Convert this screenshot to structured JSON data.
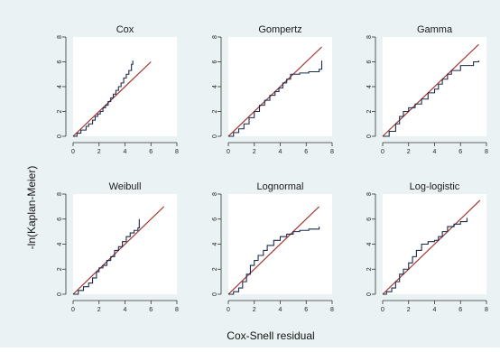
{
  "figure": {
    "ylabel": "-ln(Kaplan-Meier)",
    "xlabel": "Cox-Snell residual",
    "colors": {
      "outer_bg": "#eaf2f3",
      "panel_bg": "#ffffff",
      "step": "#1a2b4c",
      "reference": "#a3322a"
    }
  },
  "chart_data": [
    {
      "type": "line",
      "title": "Cox",
      "xlim": [
        0,
        8
      ],
      "ylim": [
        0,
        8
      ],
      "xticks": [
        0,
        2,
        4,
        6,
        8
      ],
      "yticks": [
        0,
        2,
        4,
        6,
        8
      ],
      "series": [
        {
          "values": [
            [
              0,
              0
            ],
            [
              0.3,
              0.25
            ],
            [
              0.6,
              0.5
            ],
            [
              1.0,
              0.8
            ],
            [
              1.2,
              1.0
            ],
            [
              1.5,
              1.3
            ],
            [
              1.7,
              1.6
            ],
            [
              1.9,
              1.8
            ],
            [
              2.1,
              2.0
            ],
            [
              2.3,
              2.3
            ],
            [
              2.5,
              2.5
            ],
            [
              2.7,
              2.8
            ],
            [
              2.9,
              3.1
            ],
            [
              3.1,
              3.4
            ],
            [
              3.3,
              3.7
            ],
            [
              3.5,
              4.0
            ],
            [
              3.7,
              4.3
            ],
            [
              3.9,
              4.7
            ],
            [
              4.1,
              5.0
            ],
            [
              4.3,
              5.3
            ],
            [
              4.5,
              5.8
            ],
            [
              4.6,
              6.1
            ]
          ]
        },
        {
          "values": [
            [
              0,
              0
            ],
            [
              6,
              6
            ]
          ]
        }
      ]
    },
    {
      "type": "line",
      "title": "Gompertz",
      "xlim": [
        0,
        8
      ],
      "ylim": [
        0,
        8
      ],
      "xticks": [
        0,
        2,
        4,
        6,
        8
      ],
      "yticks": [
        0,
        2,
        4,
        6,
        8
      ],
      "series": [
        {
          "values": [
            [
              0,
              0
            ],
            [
              0.4,
              0.3
            ],
            [
              0.8,
              0.6
            ],
            [
              1.2,
              1.0
            ],
            [
              1.6,
              1.5
            ],
            [
              2.0,
              2.0
            ],
            [
              2.4,
              2.5
            ],
            [
              2.8,
              2.9
            ],
            [
              3.2,
              3.3
            ],
            [
              3.6,
              3.6
            ],
            [
              3.9,
              3.9
            ],
            [
              4.2,
              4.3
            ],
            [
              4.5,
              4.6
            ],
            [
              4.8,
              5.0
            ],
            [
              5.5,
              5.1
            ],
            [
              6.2,
              5.2
            ],
            [
              7.0,
              5.4
            ],
            [
              7.2,
              5.5
            ],
            [
              7.2,
              6.1
            ]
          ]
        },
        {
          "values": [
            [
              0,
              0
            ],
            [
              7.2,
              7.2
            ]
          ]
        }
      ]
    },
    {
      "type": "line",
      "title": "Gamma",
      "xlim": [
        0,
        8
      ],
      "ylim": [
        0,
        8
      ],
      "xticks": [
        0,
        2,
        4,
        6,
        8
      ],
      "yticks": [
        0,
        2,
        4,
        6,
        8
      ],
      "series": [
        {
          "values": [
            [
              0,
              0
            ],
            [
              0.5,
              0.4
            ],
            [
              1.0,
              1.0
            ],
            [
              1.3,
              1.6
            ],
            [
              1.6,
              2.0
            ],
            [
              2.0,
              2.3
            ],
            [
              2.5,
              2.6
            ],
            [
              3.0,
              3.0
            ],
            [
              3.5,
              3.5
            ],
            [
              4.0,
              3.8
            ],
            [
              4.3,
              4.2
            ],
            [
              4.6,
              4.6
            ],
            [
              5.0,
              5.0
            ],
            [
              5.3,
              5.3
            ],
            [
              6.0,
              5.7
            ],
            [
              7.0,
              6.0
            ],
            [
              7.4,
              6.1
            ]
          ]
        },
        {
          "values": [
            [
              0,
              0
            ],
            [
              7.4,
              7.4
            ]
          ]
        }
      ]
    },
    {
      "type": "line",
      "title": "Weibull",
      "xlim": [
        0,
        8
      ],
      "ylim": [
        0,
        8
      ],
      "xticks": [
        0,
        2,
        4,
        6,
        8
      ],
      "yticks": [
        0,
        2,
        4,
        6,
        8
      ],
      "series": [
        {
          "values": [
            [
              0,
              0
            ],
            [
              0.4,
              0.3
            ],
            [
              0.8,
              0.6
            ],
            [
              1.2,
              0.9
            ],
            [
              1.5,
              1.3
            ],
            [
              1.8,
              1.8
            ],
            [
              2.0,
              2.1
            ],
            [
              2.3,
              2.3
            ],
            [
              2.6,
              2.7
            ],
            [
              2.9,
              3.0
            ],
            [
              3.2,
              3.5
            ],
            [
              3.5,
              3.8
            ],
            [
              3.8,
              4.2
            ],
            [
              4.1,
              4.6
            ],
            [
              4.4,
              4.9
            ],
            [
              4.7,
              5.1
            ],
            [
              5.0,
              5.3
            ],
            [
              5.1,
              6.0
            ]
          ]
        },
        {
          "values": [
            [
              0,
              0
            ],
            [
              7,
              7
            ]
          ]
        }
      ]
    },
    {
      "type": "line",
      "title": "Lognormal",
      "xlim": [
        0,
        8
      ],
      "ylim": [
        0,
        8
      ],
      "xticks": [
        0,
        2,
        4,
        6,
        8
      ],
      "yticks": [
        0,
        2,
        4,
        6,
        8
      ],
      "series": [
        {
          "values": [
            [
              0,
              0
            ],
            [
              0.4,
              0.2
            ],
            [
              0.8,
              0.5
            ],
            [
              1.1,
              1.0
            ],
            [
              1.4,
              1.6
            ],
            [
              1.7,
              2.3
            ],
            [
              2.0,
              2.7
            ],
            [
              2.3,
              3.1
            ],
            [
              2.7,
              3.5
            ],
            [
              3.0,
              3.9
            ],
            [
              3.5,
              4.3
            ],
            [
              4.0,
              4.6
            ],
            [
              4.5,
              4.8
            ],
            [
              5.0,
              5.0
            ],
            [
              5.5,
              5.1
            ],
            [
              6.2,
              5.2
            ],
            [
              7.0,
              5.4
            ]
          ]
        },
        {
          "values": [
            [
              0,
              0
            ],
            [
              7,
              7
            ]
          ]
        }
      ]
    },
    {
      "type": "line",
      "title": "Log-logistic",
      "xlim": [
        0,
        8
      ],
      "ylim": [
        0,
        8
      ],
      "xticks": [
        0,
        2,
        4,
        6,
        8
      ],
      "yticks": [
        0,
        2,
        4,
        6,
        8
      ],
      "series": [
        {
          "values": [
            [
              0,
              0
            ],
            [
              0.3,
              0.2
            ],
            [
              0.7,
              0.5
            ],
            [
              1.0,
              1.0
            ],
            [
              1.3,
              1.6
            ],
            [
              1.6,
              2.0
            ],
            [
              2.0,
              2.5
            ],
            [
              2.3,
              3.0
            ],
            [
              2.6,
              3.5
            ],
            [
              3.0,
              4.0
            ],
            [
              3.5,
              4.2
            ],
            [
              4.0,
              4.3
            ],
            [
              4.3,
              4.6
            ],
            [
              4.6,
              5.0
            ],
            [
              5.0,
              5.4
            ],
            [
              5.5,
              5.6
            ],
            [
              6.0,
              5.8
            ],
            [
              6.5,
              6.1
            ]
          ]
        },
        {
          "values": [
            [
              0,
              0
            ],
            [
              7.5,
              7.5
            ]
          ]
        }
      ]
    }
  ]
}
